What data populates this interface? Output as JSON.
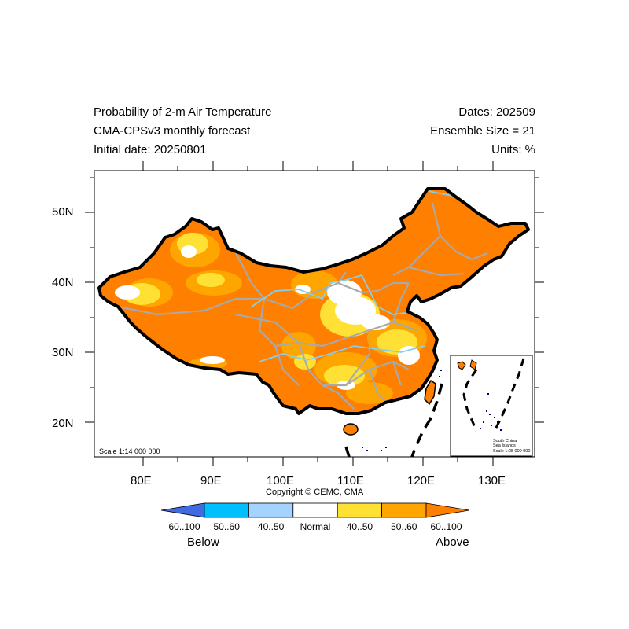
{
  "header": {
    "title_line1": "Probability of 2-m Air Temperature",
    "title_line2": "CMA-CPSv3 monthly forecast",
    "title_line3": "Initial date: 20250801",
    "dates": "Dates: 202509",
    "ensemble": "Ensemble Size = 21",
    "units": "Units: %"
  },
  "map": {
    "lon_labels": [
      "80E",
      "90E",
      "100E",
      "110E",
      "120E",
      "130E"
    ],
    "lat_labels": [
      "50N",
      "40N",
      "30N",
      "20N"
    ],
    "scale_main": "Scale 1:14 000 000",
    "inset_label_1": "South China",
    "inset_label_2": "Sea Islands",
    "inset_scale": "Scale 1:28 000 000",
    "copyright": "Copyright © CEMC, CMA",
    "fill_colors": {
      "above_60_100": "#ff7f00",
      "above_50_60": "#ffa500",
      "above_40_50": "#ffe135",
      "normal": "#ffffff"
    }
  },
  "legend": {
    "bins": [
      {
        "label": "60..100",
        "color": "#4169e1"
      },
      {
        "label": "50..60",
        "color": "#00bfff"
      },
      {
        "label": "40..50",
        "color": "#a4d3ff"
      },
      {
        "label": "Normal",
        "color": "#ffffff"
      },
      {
        "label": "40..50",
        "color": "#ffe135"
      },
      {
        "label": "50..60",
        "color": "#ffa500"
      },
      {
        "label": "60..100",
        "color": "#ff7f00"
      }
    ],
    "below_label": "Below",
    "above_label": "Above"
  }
}
